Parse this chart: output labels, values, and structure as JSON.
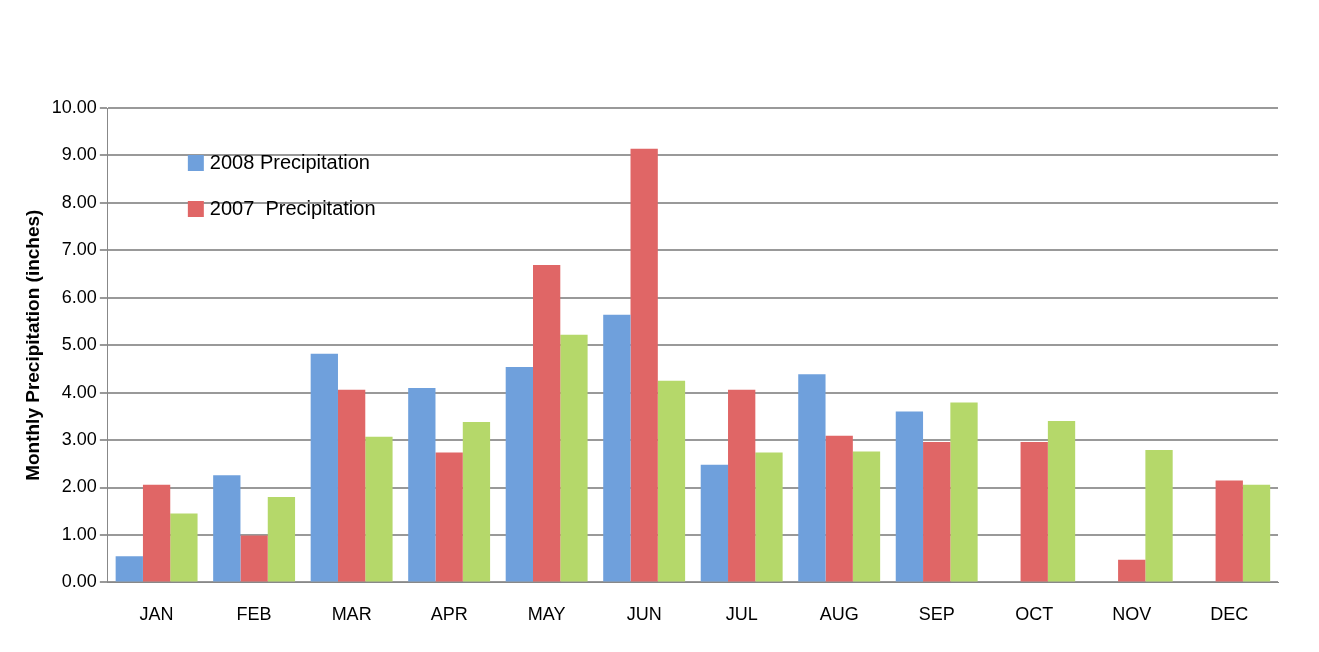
{
  "chart_data": {
    "type": "bar",
    "ylabel": "Monthly Precipitation (inches)",
    "categories": [
      "JAN",
      "FEB",
      "MAR",
      "APR",
      "MAY",
      "JUN",
      "JUL",
      "AUG",
      "SEP",
      "OCT",
      "NOV",
      "DEC"
    ],
    "series": [
      {
        "name": "2008 Precipitation",
        "color": "#6fa0dc",
        "values": [
          0.55,
          2.26,
          4.82,
          4.1,
          4.54,
          5.64,
          2.48,
          4.39,
          3.6,
          null,
          null,
          null
        ]
      },
      {
        "name": "2007  Precipitation",
        "color": "#e06666",
        "values": [
          2.06,
          0.99,
          4.06,
          2.74,
          6.69,
          9.14,
          4.06,
          3.09,
          2.96,
          2.96,
          0.48,
          2.15
        ]
      },
      {
        "color": "#b5d86a",
        "values": [
          1.45,
          1.8,
          3.07,
          3.38,
          5.22,
          4.25,
          2.74,
          2.76,
          3.79,
          3.4,
          2.79,
          2.06
        ]
      }
    ],
    "ylim": [
      0,
      10
    ],
    "yticks": [
      {
        "value": 0,
        "label": "0.00"
      },
      {
        "value": 1,
        "label": "1.00"
      },
      {
        "value": 2,
        "label": "2.00"
      },
      {
        "value": 3,
        "label": "3.00"
      },
      {
        "value": 4,
        "label": "4.00"
      },
      {
        "value": 5,
        "label": "5.00"
      },
      {
        "value": 6,
        "label": "6.00"
      },
      {
        "value": 7,
        "label": "7.00"
      },
      {
        "value": 8,
        "label": "8.00"
      },
      {
        "value": 9,
        "label": "9.00"
      },
      {
        "value": 10,
        "label": "10.00"
      }
    ],
    "grid": "y",
    "legend": "top left"
  }
}
